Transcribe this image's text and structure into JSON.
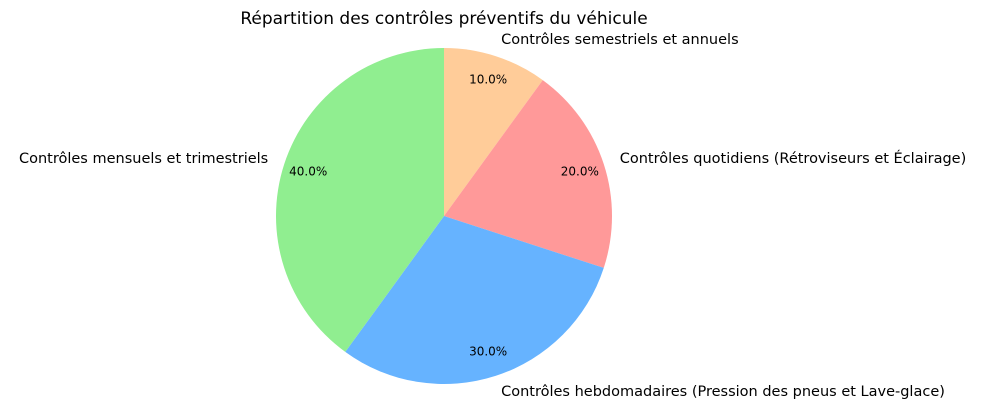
{
  "chart_data": {
    "type": "pie",
    "title": "Répartition des contrôles préventifs du véhicule",
    "start_angle_deg": 90,
    "direction": "clockwise",
    "legend": "none",
    "slices": [
      {
        "label": "Contrôles semestriels et annuels",
        "value": 10.0,
        "pct_label": "10.0%",
        "color": "#ffcc99"
      },
      {
        "label": "Contrôles quotidiens (Rétroviseurs et Éclairage)",
        "value": 20.0,
        "pct_label": "20.0%",
        "color": "#ff9999"
      },
      {
        "label": "Contrôles hebdomadaires (Pression des pneus et Lave-glace)",
        "value": 30.0,
        "pct_label": "30.0%",
        "color": "#66b3ff"
      },
      {
        "label": "Contrôles mensuels et trimestriels",
        "value": 40.0,
        "pct_label": "40.0%",
        "color": "#90ee90"
      }
    ]
  }
}
